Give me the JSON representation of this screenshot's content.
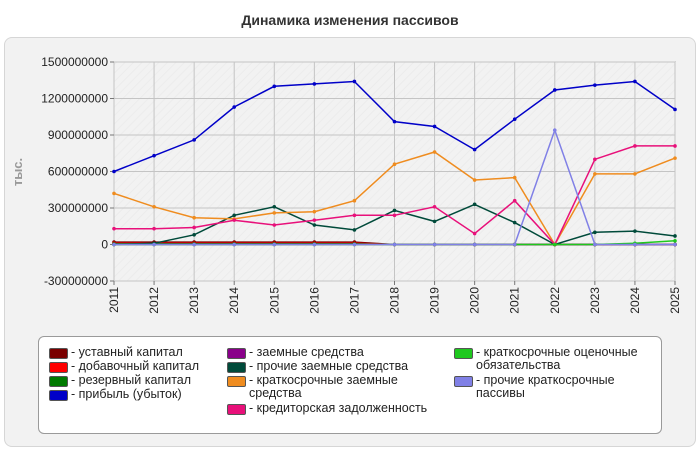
{
  "chart_data": {
    "type": "line",
    "title": "Динамика изменения пассивов",
    "ylabel": "тыс.",
    "xlabel": "",
    "ylim": [
      -300000000,
      1500000000
    ],
    "yticks": [
      -300000000,
      0,
      300000000,
      600000000,
      900000000,
      1200000000,
      1500000000
    ],
    "x": [
      "2011",
      "2012",
      "2013",
      "2014",
      "2015",
      "2016",
      "2017",
      "2018",
      "2019",
      "2020",
      "2021",
      "2022",
      "2023",
      "2024",
      "2025"
    ],
    "grid": true,
    "legend_position": "bottom",
    "series": [
      {
        "name": "уставный капитал",
        "color": "#7a0000",
        "values": [
          20000000,
          20000000,
          20000000,
          20000000,
          20000000,
          20000000,
          20000000,
          0,
          0,
          0,
          0,
          0,
          0,
          0,
          0
        ]
      },
      {
        "name": "добавочный капитал",
        "color": "#ff0000",
        "values": [
          10000000,
          10000000,
          10000000,
          10000000,
          10000000,
          10000000,
          10000000,
          0,
          0,
          0,
          0,
          0,
          0,
          0,
          0
        ]
      },
      {
        "name": "резервный капитал",
        "color": "#007a00",
        "values": [
          5000000,
          5000000,
          5000000,
          5000000,
          5000000,
          5000000,
          5000000,
          0,
          0,
          0,
          0,
          0,
          0,
          0,
          0
        ]
      },
      {
        "name": "прибыль (убыток)",
        "color": "#0000c8",
        "values": [
          600000000,
          730000000,
          860000000,
          1130000000,
          1300000000,
          1320000000,
          1340000000,
          1010000000,
          970000000,
          780000000,
          1030000000,
          1270000000,
          1310000000,
          1340000000,
          1110000000
        ]
      },
      {
        "name": "заемные средства",
        "color": "#8a008a",
        "values": [
          0,
          0,
          0,
          0,
          0,
          0,
          0,
          0,
          0,
          0,
          0,
          0,
          0,
          0,
          0
        ]
      },
      {
        "name": "прочие заемные средства",
        "color": "#004a3a",
        "values": [
          0,
          10000000,
          80000000,
          240000000,
          310000000,
          160000000,
          120000000,
          280000000,
          190000000,
          330000000,
          180000000,
          0,
          100000000,
          110000000,
          70000000
        ]
      },
      {
        "name": "краткосрочные заемные средства",
        "color": "#ef8c1f",
        "values": [
          420000000,
          310000000,
          220000000,
          210000000,
          260000000,
          270000000,
          360000000,
          660000000,
          760000000,
          530000000,
          550000000,
          0,
          580000000,
          580000000,
          710000000
        ]
      },
      {
        "name": "кредиторская задолженность",
        "color": "#e8107a",
        "values": [
          130000000,
          130000000,
          140000000,
          200000000,
          160000000,
          200000000,
          240000000,
          240000000,
          310000000,
          90000000,
          360000000,
          0,
          700000000,
          810000000,
          810000000
        ]
      },
      {
        "name": "краткосрочные оценочные обязательства",
        "color": "#1ec81e",
        "values": [
          0,
          0,
          0,
          0,
          0,
          0,
          0,
          0,
          0,
          0,
          0,
          0,
          0,
          10000000,
          30000000
        ]
      },
      {
        "name": "прочие краткосрочные пассивы",
        "color": "#8080e6",
        "values": [
          0,
          0,
          0,
          0,
          0,
          0,
          0,
          0,
          0,
          0,
          0,
          940000000,
          0,
          0,
          0
        ]
      }
    ]
  }
}
